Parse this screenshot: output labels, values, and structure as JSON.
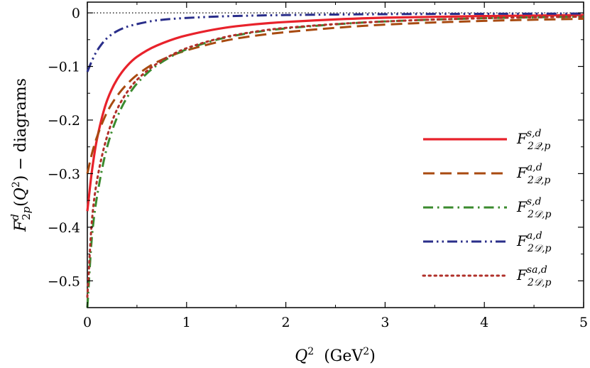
{
  "chart_data": {
    "type": "line",
    "title": "",
    "xlabel": "Q^2 (GeV^2)",
    "ylabel": "F^d_2p(Q^2) - diagrams",
    "xlim": [
      0,
      5
    ],
    "ylim": [
      -0.55,
      0.02
    ],
    "x_ticks": [
      0,
      1,
      2,
      3,
      4,
      5
    ],
    "x_tick_labels": [
      "0",
      "1",
      "2",
      "3",
      "4",
      "5"
    ],
    "y_ticks": [
      0,
      -0.1,
      -0.2,
      -0.3,
      -0.4,
      -0.5
    ],
    "y_tick_labels": [
      "0",
      "−0.1",
      "−0.2",
      "−0.3",
      "−0.4",
      "−0.5"
    ],
    "grid": false,
    "legend_position": "right",
    "reference_line": {
      "y": 0,
      "style": "dotted",
      "color": "#000000"
    },
    "series": [
      {
        "name": "F^{s,d}_{2Q,p}",
        "label_main": "F",
        "label_sup": "s,d",
        "label_sub": "2𝒬,p",
        "color": "#e8222b",
        "style": "solid",
        "x": [
          0,
          0.05,
          0.1,
          0.2,
          0.3,
          0.4,
          0.5,
          0.7,
          1.0,
          1.5,
          2.0,
          3.0,
          4.0,
          5.0
        ],
        "values": [
          -0.37,
          -0.29,
          -0.233,
          -0.163,
          -0.124,
          -0.099,
          -0.082,
          -0.061,
          -0.042,
          -0.025,
          -0.017,
          -0.009,
          -0.006,
          -0.004
        ]
      },
      {
        "name": "F^{a,d}_{2Q,p}",
        "label_main": "F",
        "label_sup": "a,d",
        "label_sub": "2𝒬,p",
        "color": "#a84a10",
        "style": "dashed",
        "x": [
          0,
          0.05,
          0.1,
          0.2,
          0.3,
          0.4,
          0.5,
          0.7,
          1.0,
          1.5,
          2.0,
          3.0,
          4.0,
          5.0
        ],
        "values": [
          -0.3,
          -0.26,
          -0.23,
          -0.185,
          -0.155,
          -0.133,
          -0.116,
          -0.092,
          -0.07,
          -0.048,
          -0.036,
          -0.022,
          -0.015,
          -0.011
        ]
      },
      {
        "name": "F^{s,d}_{2D,p}",
        "label_main": "F",
        "label_sup": "s,d",
        "label_sub": "2𝒟,p",
        "color": "#3a8a2e",
        "style": "dashdot",
        "x": [
          0,
          0.05,
          0.1,
          0.2,
          0.3,
          0.4,
          0.5,
          0.7,
          1.0,
          1.5,
          2.0,
          3.0,
          4.0,
          5.0
        ],
        "values": [
          -0.55,
          -0.41,
          -0.34,
          -0.25,
          -0.195,
          -0.158,
          -0.132,
          -0.098,
          -0.068,
          -0.042,
          -0.029,
          -0.016,
          -0.01,
          -0.007
        ]
      },
      {
        "name": "F^{a,d}_{2D,p}",
        "label_main": "F",
        "label_sup": "a,d",
        "label_sub": "2𝒟,p",
        "color": "#2a2e8a",
        "style": "dashdotdot",
        "x": [
          0,
          0.05,
          0.1,
          0.2,
          0.3,
          0.4,
          0.5,
          0.7,
          1.0,
          1.5,
          2.0,
          3.0,
          4.0,
          5.0
        ],
        "values": [
          -0.11,
          -0.088,
          -0.07,
          -0.047,
          -0.034,
          -0.026,
          -0.021,
          -0.014,
          -0.0095,
          -0.0058,
          -0.0041,
          -0.0025,
          -0.0018,
          -0.0014
        ]
      },
      {
        "name": "F^{sa,d}_{2D,p}",
        "label_main": "F",
        "label_sup": "sa,d",
        "label_sub": "2𝒟,p",
        "color": "#b0302a",
        "style": "dotted",
        "x": [
          0,
          0.05,
          0.1,
          0.2,
          0.3,
          0.4,
          0.5,
          0.7,
          1.0,
          1.5,
          2.0,
          3.0,
          4.0,
          5.0
        ],
        "values": [
          -0.53,
          -0.38,
          -0.31,
          -0.23,
          -0.18,
          -0.148,
          -0.125,
          -0.095,
          -0.066,
          -0.041,
          -0.028,
          -0.016,
          -0.01,
          -0.007
        ]
      }
    ]
  }
}
